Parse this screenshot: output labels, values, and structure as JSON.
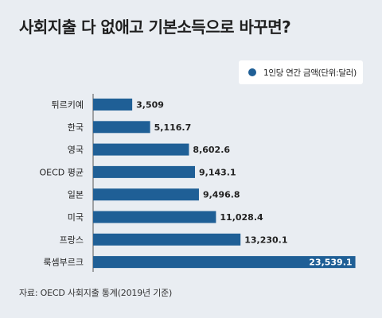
{
  "title": "사회지출 다 없애고 기본소득으로 바꾸면?",
  "legend": {
    "label": "1인당 연간 금액(단위:달러)",
    "color": "#1f5f96"
  },
  "source": "자료: OECD 사회지출 통계(2019년 기준)",
  "chart_data": {
    "type": "bar",
    "orientation": "horizontal",
    "categories": [
      "튀르키예",
      "한국",
      "영국",
      "OECD 평균",
      "일본",
      "미국",
      "프랑스",
      "룩셈부르크"
    ],
    "series": [
      {
        "name": "1인당 연간 금액(단위:달러)",
        "values": [
          3509,
          5116.7,
          8602.6,
          9143.1,
          9496.8,
          11028.4,
          13230.1,
          23539.1
        ]
      }
    ],
    "value_labels": [
      "3,509",
      "5,116.7",
      "8,602.6",
      "9,143.1",
      "9,496.8",
      "11,028.4",
      "13,230.1",
      "23,539.1"
    ],
    "xlim": [
      0,
      24500
    ],
    "grid": false,
    "legend_position": "top-right",
    "color": "#1f5f96"
  }
}
